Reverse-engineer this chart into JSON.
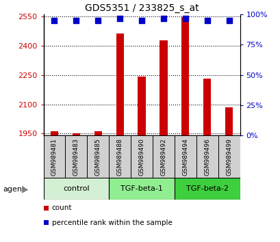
{
  "title": "GDS5351 / 233825_s_at",
  "samples": [
    "GSM989481",
    "GSM989483",
    "GSM989485",
    "GSM989488",
    "GSM989490",
    "GSM989492",
    "GSM989494",
    "GSM989496",
    "GSM989499"
  ],
  "counts": [
    1962,
    1952,
    1963,
    2462,
    2242,
    2428,
    2548,
    2232,
    2085
  ],
  "percentile_ranks": [
    95,
    95,
    95,
    97,
    95,
    97,
    97,
    95,
    95
  ],
  "groups": [
    {
      "label": "control",
      "indices": [
        0,
        1,
        2
      ],
      "color": "#c8f0c8"
    },
    {
      "label": "TGF-beta-1",
      "indices": [
        3,
        4,
        5
      ],
      "color": "#90ee90"
    },
    {
      "label": "TGF-beta-2",
      "indices": [
        6,
        7,
        8
      ],
      "color": "#3ecf3e"
    }
  ],
  "ylim_left": [
    1940,
    2560
  ],
  "ylim_right": [
    0,
    100
  ],
  "yticks_left": [
    1950,
    2100,
    2250,
    2400,
    2550
  ],
  "yticks_right": [
    0,
    25,
    50,
    75,
    100
  ],
  "bar_color": "#cc0000",
  "dot_color": "#0000cc",
  "bar_width": 0.35,
  "plot_bg_color": "#ffffff",
  "tick_label_color_left": "#cc0000",
  "tick_label_color_right": "#0000cc",
  "legend_count_color": "#cc0000",
  "legend_pct_color": "#0000cc",
  "sample_bg_color": "#d0d0d0",
  "group_colors": [
    "#d4f0d4",
    "#90ee90",
    "#3ecf3e"
  ],
  "right_tick_labels": [
    "0%",
    "25%",
    "50%",
    "75%",
    "100%"
  ]
}
